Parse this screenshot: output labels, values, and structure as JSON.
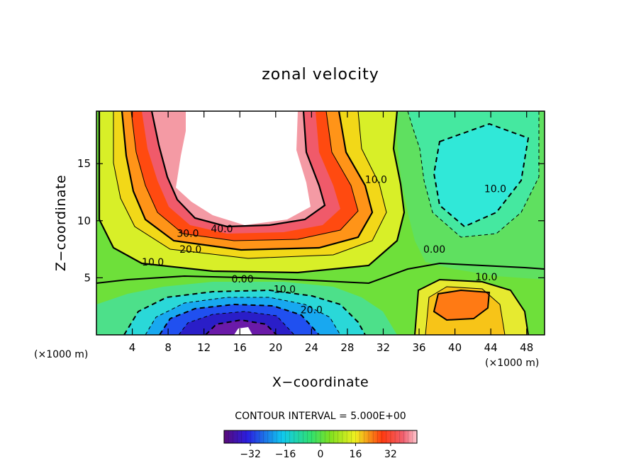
{
  "chart_data": {
    "type": "heatmap",
    "subtype": "filled-contour",
    "title": "zonal velocity",
    "xlabel": "X−coordinate",
    "ylabel": "Z−coordinate",
    "x_unit_left": "(×1000 m)",
    "x_unit_right": "(×1000 m)",
    "xlim": [
      0,
      50
    ],
    "ylim": [
      0,
      19.6
    ],
    "x_ticks": [
      4,
      8,
      12,
      16,
      20,
      24,
      28,
      32,
      36,
      40,
      44,
      48
    ],
    "y_ticks": [
      5,
      10,
      15
    ],
    "contour_interval_text": "CONTOUR INTERVAL = 5.000E+00",
    "contour_interval": 5,
    "colorscale": "rainbow (violet-blue-cyan-green-yellow-red-pink)",
    "colorbar_range": [
      -44,
      44
    ],
    "colorbar_ticks": [
      -32,
      -16,
      0,
      16,
      32
    ],
    "colorbar_tick_labels": [
      "−32",
      "−16",
      "0",
      "16",
      "32"
    ],
    "contour_labels": [
      {
        "text": "40.0",
        "x": 14.0,
        "z": 9.3
      },
      {
        "text": "30.0",
        "x": 10.2,
        "z": 8.9
      },
      {
        "text": "20.0",
        "x": 10.5,
        "z": 7.5
      },
      {
        "text": "10.0",
        "x": 6.3,
        "z": 6.4
      },
      {
        "text": "0.00",
        "x": 16.3,
        "z": 4.9
      },
      {
        "text": "10.0",
        "x": 21.0,
        "z": 4.0
      },
      {
        "text": "20.0",
        "x": 24.0,
        "z": 2.2
      },
      {
        "text": "10.0",
        "x": 31.2,
        "z": 13.6
      },
      {
        "text": "0.00",
        "x": 37.7,
        "z": 7.5
      },
      {
        "text": "10.0",
        "x": 44.5,
        "z": 12.8
      },
      {
        "text": "10.0",
        "x": 43.5,
        "z": 5.1
      }
    ],
    "features": [
      {
        "kind": "max",
        "label": "eastward jet core (above 40, white)",
        "x": 15.5,
        "z": 15.0
      },
      {
        "kind": "min",
        "label": "westward flow near bottom (below −30)",
        "x": 16.0,
        "z": 0.8
      },
      {
        "kind": "min",
        "label": "westward flow aloft (about −10)",
        "x": 41.5,
        "z": 13.5
      },
      {
        "kind": "max",
        "label": "eastward flow near bottom (about 20)",
        "x": 41.0,
        "z": 2.8
      }
    ]
  }
}
